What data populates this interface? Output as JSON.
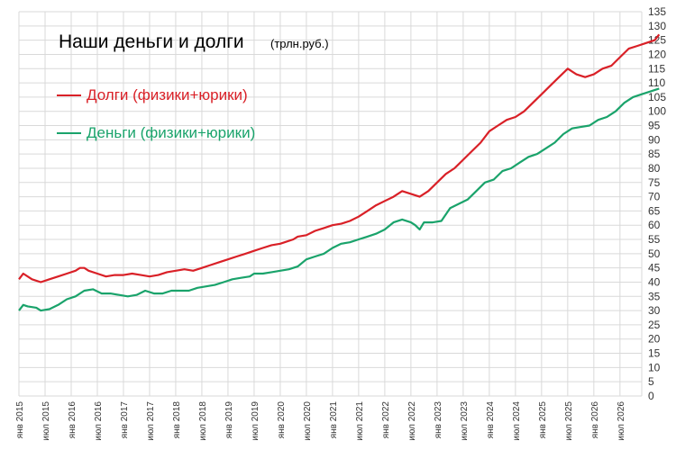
{
  "chart_data": {
    "type": "line",
    "title": "Наши деньги и долги",
    "title_unit": "(трлн.руб.)",
    "legend_placement": "top-left",
    "grid": true,
    "ylim": [
      0,
      135
    ],
    "y_ticks": [
      0,
      5,
      10,
      15,
      20,
      25,
      30,
      35,
      40,
      45,
      50,
      55,
      60,
      65,
      70,
      75,
      80,
      85,
      90,
      95,
      100,
      105,
      110,
      115,
      120,
      125,
      130,
      135
    ],
    "x_tick_labels": [
      "янв 2015",
      "июл 2015",
      "янв 2016",
      "июл 2016",
      "янв 2017",
      "июл 2017",
      "янв 2018",
      "июл 2018",
      "янв 2019",
      "июл 2019",
      "янв 2020",
      "июл 2020",
      "янв 2021",
      "июл 2021",
      "янв 2022",
      "июл 2022",
      "янв 2023",
      "июл 2023",
      "янв 2024",
      "июл 2024",
      "янв 2025",
      "июл 2025",
      "янв 2026",
      "июл 2026"
    ],
    "series": [
      {
        "name": "Долги (физики+юрики)",
        "color": "#d92027",
        "points": [
          [
            0,
            41
          ],
          [
            1,
            43
          ],
          [
            3,
            41
          ],
          [
            5,
            40
          ],
          [
            7,
            41
          ],
          [
            9,
            42
          ],
          [
            11,
            43
          ],
          [
            13,
            44
          ],
          [
            14,
            45
          ],
          [
            15,
            45
          ],
          [
            16,
            44
          ],
          [
            18,
            43
          ],
          [
            20,
            42
          ],
          [
            22,
            42.5
          ],
          [
            24,
            42.5
          ],
          [
            26,
            43
          ],
          [
            28,
            42.5
          ],
          [
            30,
            42
          ],
          [
            32,
            42.5
          ],
          [
            34,
            43.5
          ],
          [
            36,
            44
          ],
          [
            38,
            44.5
          ],
          [
            40,
            44
          ],
          [
            42,
            45
          ],
          [
            44,
            46
          ],
          [
            46,
            47
          ],
          [
            48,
            48
          ],
          [
            50,
            49
          ],
          [
            52,
            50
          ],
          [
            54,
            51
          ],
          [
            56,
            52
          ],
          [
            58,
            53
          ],
          [
            60,
            53.5
          ],
          [
            61,
            54
          ],
          [
            63,
            55
          ],
          [
            64,
            56
          ],
          [
            66,
            56.5
          ],
          [
            68,
            58
          ],
          [
            70,
            59
          ],
          [
            72,
            60
          ],
          [
            74,
            60.5
          ],
          [
            76,
            61.5
          ],
          [
            78,
            63
          ],
          [
            80,
            65
          ],
          [
            82,
            67
          ],
          [
            84,
            68.5
          ],
          [
            86,
            70
          ],
          [
            88,
            72
          ],
          [
            90,
            71
          ],
          [
            92,
            70
          ],
          [
            94,
            72
          ],
          [
            96,
            75
          ],
          [
            98,
            78
          ],
          [
            100,
            80
          ],
          [
            102,
            83
          ],
          [
            104,
            86
          ],
          [
            106,
            89
          ],
          [
            108,
            93
          ],
          [
            110,
            95
          ],
          [
            112,
            97
          ],
          [
            114,
            98
          ],
          [
            116,
            100
          ],
          [
            118,
            103
          ],
          [
            120,
            106
          ],
          [
            122,
            109
          ],
          [
            124,
            112
          ],
          [
            126,
            115
          ],
          [
            128,
            113
          ],
          [
            130,
            112
          ],
          [
            132,
            113
          ],
          [
            134,
            115
          ],
          [
            136,
            116
          ],
          [
            138,
            119
          ],
          [
            140,
            122
          ],
          [
            142,
            123
          ],
          [
            144,
            124
          ],
          [
            146,
            125
          ],
          [
            147,
            127
          ]
        ]
      },
      {
        "name": "Деньги (физики+юрики)",
        "color": "#1aa36b",
        "points": [
          [
            0,
            30
          ],
          [
            1,
            32
          ],
          [
            2,
            31.5
          ],
          [
            4,
            31
          ],
          [
            5,
            30
          ],
          [
            7,
            30.5
          ],
          [
            9,
            32
          ],
          [
            11,
            34
          ],
          [
            13,
            35
          ],
          [
            15,
            37
          ],
          [
            17,
            37.5
          ],
          [
            19,
            36
          ],
          [
            21,
            36
          ],
          [
            23,
            35.5
          ],
          [
            25,
            35
          ],
          [
            27,
            35.5
          ],
          [
            29,
            37
          ],
          [
            31,
            36
          ],
          [
            33,
            36
          ],
          [
            35,
            37
          ],
          [
            37,
            37
          ],
          [
            39,
            37
          ],
          [
            41,
            38
          ],
          [
            43,
            38.5
          ],
          [
            45,
            39
          ],
          [
            47,
            40
          ],
          [
            49,
            41
          ],
          [
            51,
            41.5
          ],
          [
            53,
            42
          ],
          [
            54,
            43
          ],
          [
            56,
            43
          ],
          [
            58,
            43.5
          ],
          [
            60,
            44
          ],
          [
            62,
            44.5
          ],
          [
            64,
            45.5
          ],
          [
            66,
            48
          ],
          [
            68,
            49
          ],
          [
            70,
            50
          ],
          [
            72,
            52
          ],
          [
            74,
            53.5
          ],
          [
            76,
            54
          ],
          [
            78,
            55
          ],
          [
            80,
            56
          ],
          [
            82,
            57
          ],
          [
            84,
            58.5
          ],
          [
            86,
            61
          ],
          [
            88,
            62
          ],
          [
            90,
            61
          ],
          [
            91,
            60
          ],
          [
            92,
            58.5
          ],
          [
            93,
            61
          ],
          [
            95,
            61
          ],
          [
            97,
            61.5
          ],
          [
            99,
            66
          ],
          [
            101,
            67.5
          ],
          [
            103,
            69
          ],
          [
            105,
            72
          ],
          [
            107,
            75
          ],
          [
            109,
            76
          ],
          [
            111,
            79
          ],
          [
            113,
            80
          ],
          [
            115,
            82
          ],
          [
            117,
            84
          ],
          [
            119,
            85
          ],
          [
            121,
            87
          ],
          [
            123,
            89
          ],
          [
            125,
            92
          ],
          [
            127,
            94
          ],
          [
            129,
            94.5
          ],
          [
            131,
            95
          ],
          [
            133,
            97
          ],
          [
            135,
            98
          ],
          [
            137,
            100
          ],
          [
            139,
            103
          ],
          [
            141,
            105
          ],
          [
            143,
            106
          ],
          [
            145,
            107
          ],
          [
            147,
            108
          ]
        ]
      }
    ]
  }
}
